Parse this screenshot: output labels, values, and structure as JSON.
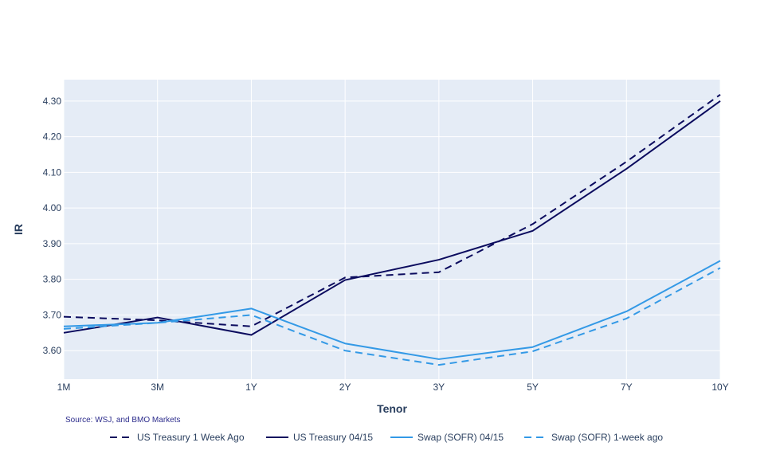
{
  "chart_data": {
    "type": "line",
    "categories": [
      "1M",
      "3M",
      "1Y",
      "2Y",
      "3Y",
      "5Y",
      "7Y",
      "10Y"
    ],
    "xlabel": "Tenor",
    "ylabel": "IR",
    "ylim": [
      3.52,
      4.36
    ],
    "yticks": [
      3.6,
      3.7,
      3.8,
      3.9,
      4.0,
      4.1,
      4.2,
      4.3
    ],
    "ytick_labels": [
      "3.60",
      "3.70",
      "3.80",
      "3.90",
      "4.00",
      "4.10",
      "4.20",
      "4.30"
    ],
    "grid": true,
    "legend_position": "bottom",
    "series": [
      {
        "name": "US Treasury 1 Week Ago",
        "color": "#0b0b5e",
        "dash": "dashed",
        "values": [
          3.695,
          3.685,
          3.668,
          3.805,
          3.82,
          3.955,
          4.13,
          4.318
        ]
      },
      {
        "name": "US Treasury 04/15",
        "color": "#0b0b5e",
        "dash": "solid",
        "values": [
          3.65,
          3.693,
          3.644,
          3.798,
          3.855,
          3.936,
          4.11,
          4.3
        ]
      },
      {
        "name": "Swap (SOFR) 04/15",
        "color": "#3399e6",
        "dash": "solid",
        "values": [
          3.668,
          3.678,
          3.718,
          3.62,
          3.576,
          3.61,
          3.71,
          3.852
        ]
      },
      {
        "name": "Swap (SOFR) 1-week ago",
        "color": "#3399e6",
        "dash": "dashed",
        "values": [
          3.661,
          3.678,
          3.7,
          3.6,
          3.56,
          3.598,
          3.69,
          3.832
        ]
      }
    ],
    "annotation": "Source: WSJ, and BMO Markets"
  },
  "colors": {
    "plot_bg": "#e5ecf6",
    "grid": "#ffffff",
    "text": "#2a3f5f"
  }
}
